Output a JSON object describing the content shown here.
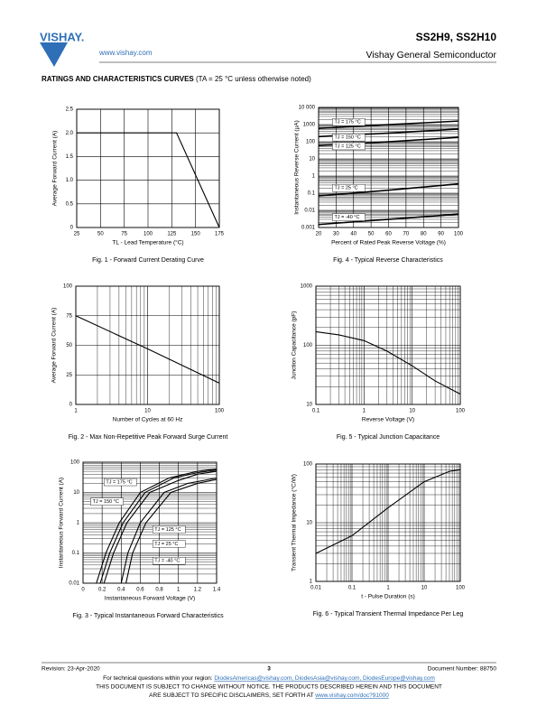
{
  "header": {
    "logo": "VISHAY.",
    "url": "www.vishay.com",
    "part": "SS2H9, SS2H10",
    "company": "Vishay General Semiconductor"
  },
  "section": {
    "title": "RATINGS AND CHARACTERISTICS CURVES",
    "note": "(TA = 25 °C unless otherwise noted)"
  },
  "chart_data": [
    {
      "type": "line",
      "caption": "Fig. 1 - Forward Current Derating Curve",
      "x_label": "TL - Lead Temperature (°C)",
      "y_label": "Average Forward Current (A)",
      "xscale": "linear",
      "yscale": "linear",
      "xlim": [
        25,
        175
      ],
      "ylim": [
        0,
        2.5
      ],
      "xticks": [
        25,
        50,
        75,
        100,
        125,
        150,
        175
      ],
      "yticks": [
        0,
        0.5,
        {
          "value": 1,
          "label": "1.0"
        },
        1.5,
        {
          "value": 2,
          "label": "2.0"
        },
        2.5
      ],
      "grid": true,
      "minor_grid": false,
      "series": [
        {
          "color": "#000000",
          "x": [
            25,
            130,
            175
          ],
          "values": [
            2,
            2,
            0
          ]
        }
      ]
    },
    {
      "type": "line",
      "caption": "Fig. 2 - Max Non-Repetitive Peak Forward Surge Current",
      "x_label": "Number of Cycles at 60 Hz",
      "y_label": "Average Forward Current (A)",
      "xscale": "log",
      "yscale": "linear",
      "xlim": [
        1,
        100
      ],
      "ylim": [
        0,
        100
      ],
      "xticks": [
        1,
        10,
        100
      ],
      "yticks": [
        0,
        25,
        50,
        75,
        100
      ],
      "grid": true,
      "minor_grid": true,
      "series": [
        {
          "color": "#000000",
          "x": [
            1,
            10,
            100
          ],
          "values": [
            75,
            47,
            18
          ]
        }
      ]
    },
    {
      "type": "line",
      "caption": "Fig. 3 - Typical Instantaneous Forward Characteristics",
      "x_label": "Instantaneous Forward Voltage (V)",
      "y_label": "Instantaneous Forward Current (A)",
      "xscale": "linear",
      "yscale": "log",
      "xlim": [
        0,
        1.4
      ],
      "ylim": [
        0.01,
        100
      ],
      "xticks": [
        0,
        0.2,
        0.4,
        0.6,
        0.8,
        1,
        {
          "value": 1.2,
          "label": "1.2"
        },
        1.4
      ],
      "yticks": [
        0.01,
        0.1,
        1,
        10,
        100
      ],
      "grid": true,
      "minor_grid": true,
      "series": [
        {
          "name": "TJ = 175 °C",
          "color": "#000000",
          "x": [
            0.14,
            0.24,
            0.38,
            0.6,
            0.9,
            1.2,
            1.4
          ],
          "values": [
            0.01,
            0.1,
            1,
            10,
            30,
            50,
            60
          ]
        },
        {
          "name": "TJ = 150 °C",
          "color": "#000000",
          "x": [
            0.18,
            0.28,
            0.42,
            0.65,
            0.95,
            1.2,
            1.4
          ],
          "values": [
            0.01,
            0.1,
            1,
            10,
            30,
            45,
            55
          ]
        },
        {
          "name": "TJ = 125 °C",
          "color": "#000000",
          "x": [
            0.22,
            0.32,
            0.46,
            0.7,
            1.0,
            1.2,
            1.4
          ],
          "values": [
            0.01,
            0.1,
            1,
            10,
            25,
            40,
            50
          ]
        },
        {
          "name": "TJ = 25 °C",
          "color": "#000000",
          "x": [
            0.4,
            0.47,
            0.6,
            0.85,
            1.1,
            1.4
          ],
          "values": [
            0.01,
            0.1,
            1,
            10,
            20,
            30
          ]
        },
        {
          "name": "TJ = -40 °C",
          "color": "#000000",
          "x": [
            0.45,
            0.52,
            0.66,
            0.92,
            1.2,
            1.4
          ],
          "values": [
            0.01,
            0.1,
            1,
            10,
            20,
            27
          ]
        }
      ]
    },
    {
      "type": "line",
      "caption": "Fig. 4 - Typical Reverse Characteristics",
      "x_label": "Percent of Rated Peak Reverse Voltage (%)",
      "y_label": "Instantaneous Reverse Current (µA)",
      "xscale": "linear",
      "yscale": "log",
      "xlim": [
        20,
        100
      ],
      "ylim": [
        0.001,
        10000
      ],
      "xticks": [
        20,
        30,
        40,
        50,
        60,
        70,
        80,
        90,
        100
      ],
      "yticks": [
        0.001,
        0.01,
        0.1,
        1,
        10,
        100,
        1000,
        {
          "value": 10000,
          "label": "10 000"
        }
      ],
      "grid": true,
      "minor_grid": true,
      "series": [
        {
          "name": "TJ = 175 °C",
          "color": "#000000",
          "x": [
            20,
            60,
            100
          ],
          "values": [
            600,
            1000,
            1600
          ]
        },
        {
          "name": "TJ = 150 °C",
          "color": "#000000",
          "x": [
            20,
            60,
            100
          ],
          "values": [
            200,
            320,
            550
          ]
        },
        {
          "name": "TJ = 125 °C",
          "color": "#000000",
          "x": [
            20,
            60,
            100
          ],
          "values": [
            60,
            100,
            180
          ]
        },
        {
          "name": "TJ = 25 °C",
          "color": "#000000",
          "x": [
            20,
            60,
            100
          ],
          "values": [
            0.07,
            0.15,
            0.35
          ]
        },
        {
          "name": "TJ = -40 °C",
          "color": "#000000",
          "x": [
            20,
            60,
            100
          ],
          "values": [
            0.0015,
            0.003,
            0.006
          ]
        }
      ]
    },
    {
      "type": "line",
      "caption": "Fig. 5 - Typical Junction Capacitance",
      "x_label": "Reverse Voltage (V)",
      "y_label": "Junction Capacitance (pF)",
      "xscale": "log",
      "yscale": "log",
      "xlim": [
        0.1,
        100
      ],
      "ylim": [
        10,
        1000
      ],
      "xticks": [
        0.1,
        1,
        10,
        100
      ],
      "yticks": [
        10,
        100,
        1000
      ],
      "grid": true,
      "minor_grid": true,
      "series": [
        {
          "color": "#000000",
          "x": [
            0.1,
            0.3,
            1,
            3,
            10,
            30,
            100
          ],
          "values": [
            170,
            150,
            120,
            80,
            45,
            25,
            15
          ]
        }
      ]
    },
    {
      "type": "line",
      "caption": "Fig. 6 - Typical Transient Thermal Impedance Per Leg",
      "x_label": "t - Pulse Duration (s)",
      "y_label": "Transient Thermal Impedance (°C/W)",
      "xscale": "log",
      "yscale": "log",
      "xlim": [
        0.01,
        100
      ],
      "ylim": [
        1,
        100
      ],
      "xticks": [
        0.01,
        0.1,
        1,
        10,
        100
      ],
      "yticks": [
        1,
        10,
        100
      ],
      "grid": true,
      "minor_grid": true,
      "series": [
        {
          "color": "#000000",
          "x": [
            0.01,
            0.1,
            1,
            10,
            50,
            100
          ],
          "values": [
            3,
            6,
            18,
            50,
            75,
            80
          ]
        }
      ]
    }
  ],
  "footer": {
    "revision": "Revision: 23-Apr-2020",
    "page": "3",
    "document": "Document Number: 88750",
    "tech_prefix": "For technical questions within your region:",
    "tech_emails": "DiodesAmericas@vishay.com, DiodesAsia@vishay.com, DiodesEurope@vishay.com",
    "disclaimer1": "THIS DOCUMENT IS SUBJECT TO CHANGE WITHOUT NOTICE. THE PRODUCTS DESCRIBED HEREIN AND THIS DOCUMENT",
    "disclaimer2": "ARE SUBJECT TO SPECIFIC DISCLAIMERS, SET FORTH AT",
    "disclaimer_link": "www.vishay.com/doc?91000"
  }
}
